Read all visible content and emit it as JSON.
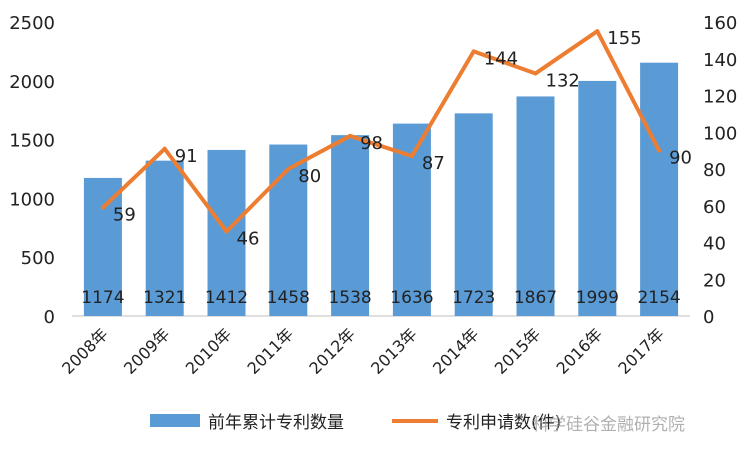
{
  "chart_data": {
    "type": "bar+line",
    "categories": [
      "2008年",
      "2009年",
      "2010年",
      "2011年",
      "2012年",
      "2013年",
      "2014年",
      "2015年",
      "2016年",
      "2017年"
    ],
    "series": [
      {
        "name": "前年累计专利数量",
        "type": "bar",
        "axis": "left",
        "color": "#5b9bd5",
        "values": [
          1174,
          1321,
          1412,
          1458,
          1538,
          1636,
          1723,
          1867,
          1999,
          2154
        ]
      },
      {
        "name": "专利申请数(件)",
        "type": "line",
        "axis": "right",
        "color": "#ed7d31",
        "values": [
          59,
          91,
          46,
          80,
          98,
          87,
          144,
          132,
          155,
          90
        ]
      }
    ],
    "left_axis": {
      "ylim": [
        0,
        2500
      ],
      "ticks": [
        "0",
        "500",
        "1000",
        "1500",
        "2000",
        "2500"
      ]
    },
    "right_axis": {
      "ylim": [
        0,
        160
      ],
      "ticks": [
        "0",
        "20",
        "40",
        "60",
        "80",
        "100",
        "120",
        "140",
        "160"
      ]
    },
    "grid": false,
    "legend": "bottom"
  },
  "legend": {
    "bar_label": "前年累计专利数量",
    "line_label": "专利申请数(件)"
  },
  "watermark": "科学硅谷金融研究院"
}
